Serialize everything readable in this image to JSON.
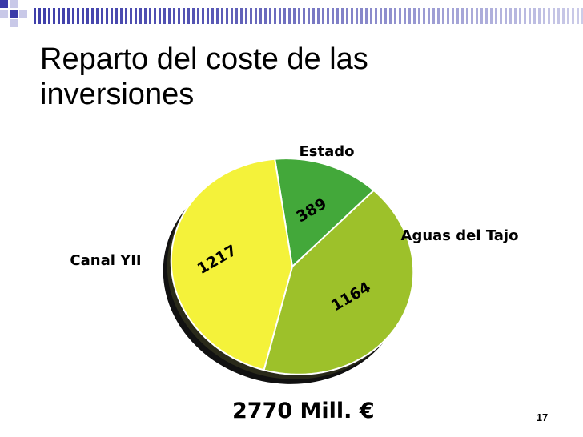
{
  "slide": {
    "title_line1": "Reparto del coste de las",
    "title_line2": "inversiones",
    "total": "2770 Mill. €",
    "page_number": "17"
  },
  "colors": {
    "accent": "#3a3aa8",
    "yellow": "#f4f23a",
    "lime": "#9dc12a",
    "green": "#43a83a",
    "shadow": "#111111"
  },
  "chart_data": {
    "type": "pie",
    "title": "",
    "slices": [
      {
        "label": "Estado",
        "value": 389,
        "value_label": "389",
        "color": "#43a83a"
      },
      {
        "label": "Aguas del Tajo",
        "value": 1164,
        "value_label": "1164",
        "color": "#9dc12a"
      },
      {
        "label": "Canal YII",
        "value": 1217,
        "value_label": "1217",
        "color": "#f4f23a"
      }
    ],
    "total": 2770,
    "total_label": "2770 Mill. €"
  }
}
